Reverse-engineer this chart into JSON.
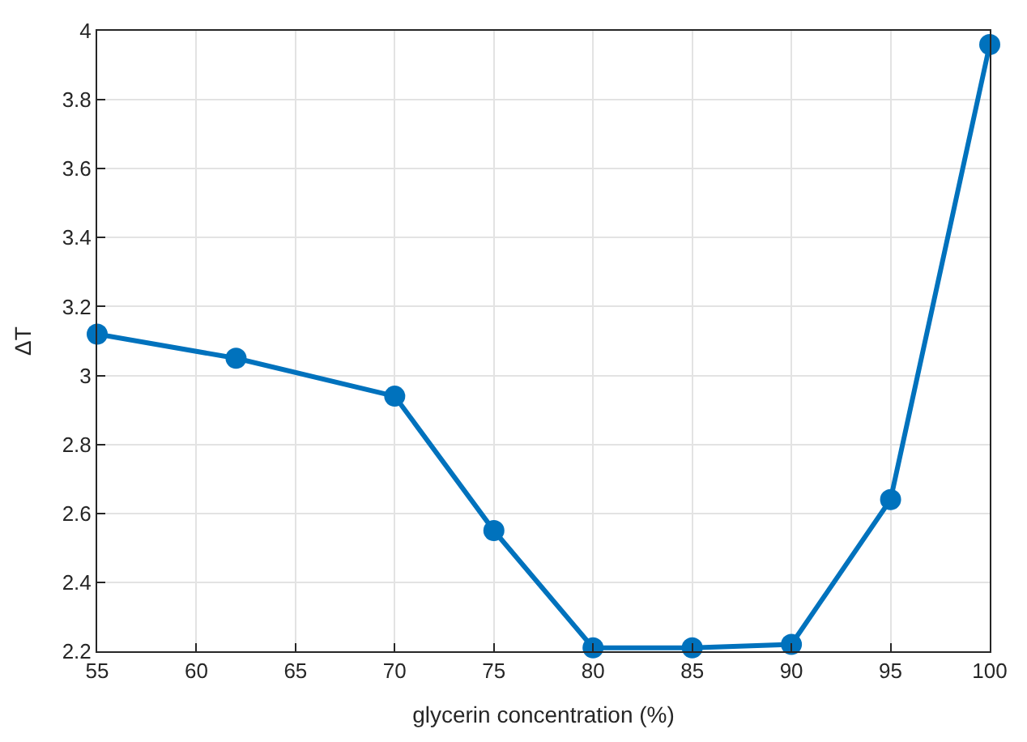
{
  "chart_data": {
    "type": "line",
    "xlabel": "glycerin concentration (%)",
    "ylabel": "ΔT",
    "x": [
      55,
      62,
      70,
      75,
      80,
      85,
      90,
      95,
      100
    ],
    "series": [
      {
        "color": "#0072bd",
        "values": [
          3.12,
          3.05,
          2.94,
          2.55,
          2.21,
          2.21,
          2.22,
          2.64,
          3.96
        ]
      }
    ],
    "xlim": [
      55,
      100
    ],
    "xticks": [
      55,
      60,
      65,
      70,
      75,
      80,
      85,
      90,
      95,
      100
    ],
    "ylim": [
      2.2,
      4
    ],
    "yticks": [
      {
        "value": 2.2,
        "label": "2.2"
      },
      {
        "value": 2.4,
        "label": "2.4"
      },
      {
        "value": 2.6,
        "label": "2.6"
      },
      {
        "value": 2.8,
        "label": "2.8"
      },
      {
        "value": 3,
        "label": "3"
      },
      {
        "value": 3.2,
        "label": "3.2"
      },
      {
        "value": 3.4,
        "label": "3.4"
      },
      {
        "value": 3.6,
        "label": "3.6"
      },
      {
        "value": 3.8,
        "label": "3.8"
      },
      {
        "value": 4,
        "label": "4"
      }
    ],
    "grid": true,
    "marker": "circle",
    "line_style": "solid",
    "legend": false
  }
}
